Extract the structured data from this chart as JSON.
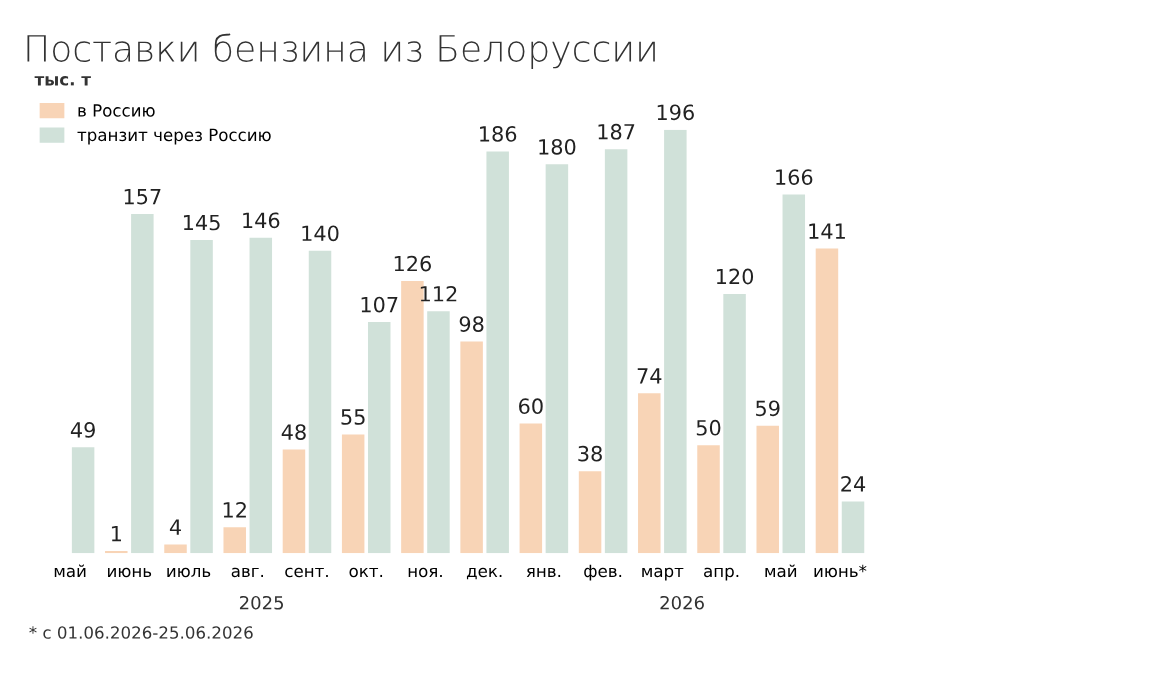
{
  "chart_data": {
    "type": "bar",
    "title": "Поставки бензина из Белоруссии",
    "ylabel": "тыс. т",
    "categories": [
      "май",
      "июнь",
      "июль",
      "авг.",
      "сент.",
      "окт.",
      "ноя.",
      "дек.",
      "янв.",
      "фев.",
      "март",
      "апр.",
      "май",
      "июнь*"
    ],
    "series": [
      {
        "name": "в Россию",
        "color": "#f8d4b6",
        "values": [
          null,
          1,
          4,
          12,
          48,
          55,
          126,
          98,
          60,
          38,
          74,
          50,
          59,
          141
        ]
      },
      {
        "name": "транзит через Россию",
        "color": "#d0e1d9",
        "values": [
          49,
          157,
          145,
          146,
          140,
          107,
          112,
          186,
          180,
          187,
          196,
          120,
          166,
          24
        ]
      }
    ],
    "data_labels": true,
    "legend": "top left",
    "grid": false,
    "annotations": [
      "2025",
      "2026",
      "* с 01.06.2026-25.06.2026"
    ]
  }
}
